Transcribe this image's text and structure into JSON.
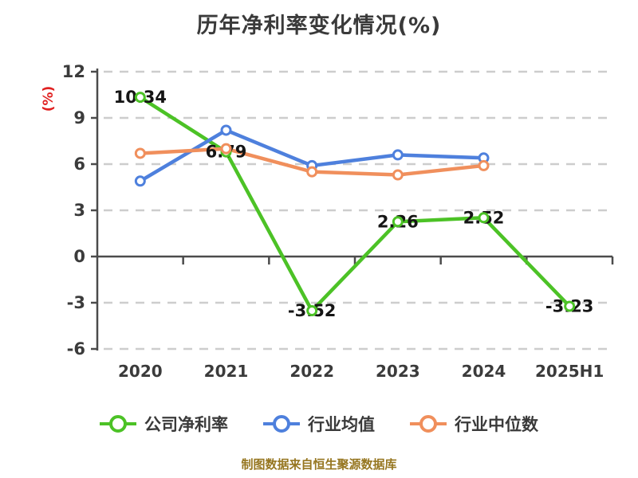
{
  "title": "历年净利率变化情况(%)",
  "y_axis_label": {
    "text": "(%)",
    "color": "#e02020"
  },
  "footer": {
    "text": "制图数据来自恒生聚源数据库",
    "color": "#967620"
  },
  "chart_data": {
    "type": "line",
    "title": "历年净利率变化情况(%)",
    "ylabel": "(%)",
    "xlabel": "",
    "categories": [
      "2020",
      "2021",
      "2022",
      "2023",
      "2024",
      "2025H1"
    ],
    "series": [
      {
        "key": "company-net-margin",
        "name": "公司净利率",
        "color": "#4cc226",
        "labeled": true,
        "values": [
          10.34,
          6.79,
          -3.52,
          2.26,
          2.52,
          -3.23
        ]
      },
      {
        "key": "industry-average",
        "name": "行业均值",
        "color": "#4e80dd",
        "labeled": false,
        "values": [
          4.9,
          8.2,
          5.9,
          6.6,
          6.4,
          null
        ]
      },
      {
        "key": "industry-median",
        "name": "行业中位数",
        "color": "#f08f5c",
        "labeled": false,
        "values": [
          6.7,
          7.0,
          5.5,
          5.3,
          5.9,
          null
        ]
      }
    ],
    "ylim": [
      -6,
      12
    ],
    "yticks": [
      12,
      9,
      6,
      3,
      0,
      -3,
      -6
    ],
    "grid": "horizontal-dashed",
    "grid_color": "#cdcdcd",
    "axis_color": "#4b4b4b",
    "tick_label_color": "#3b3b3b",
    "point_label_color": "#151515",
    "legend_position": "bottom"
  }
}
